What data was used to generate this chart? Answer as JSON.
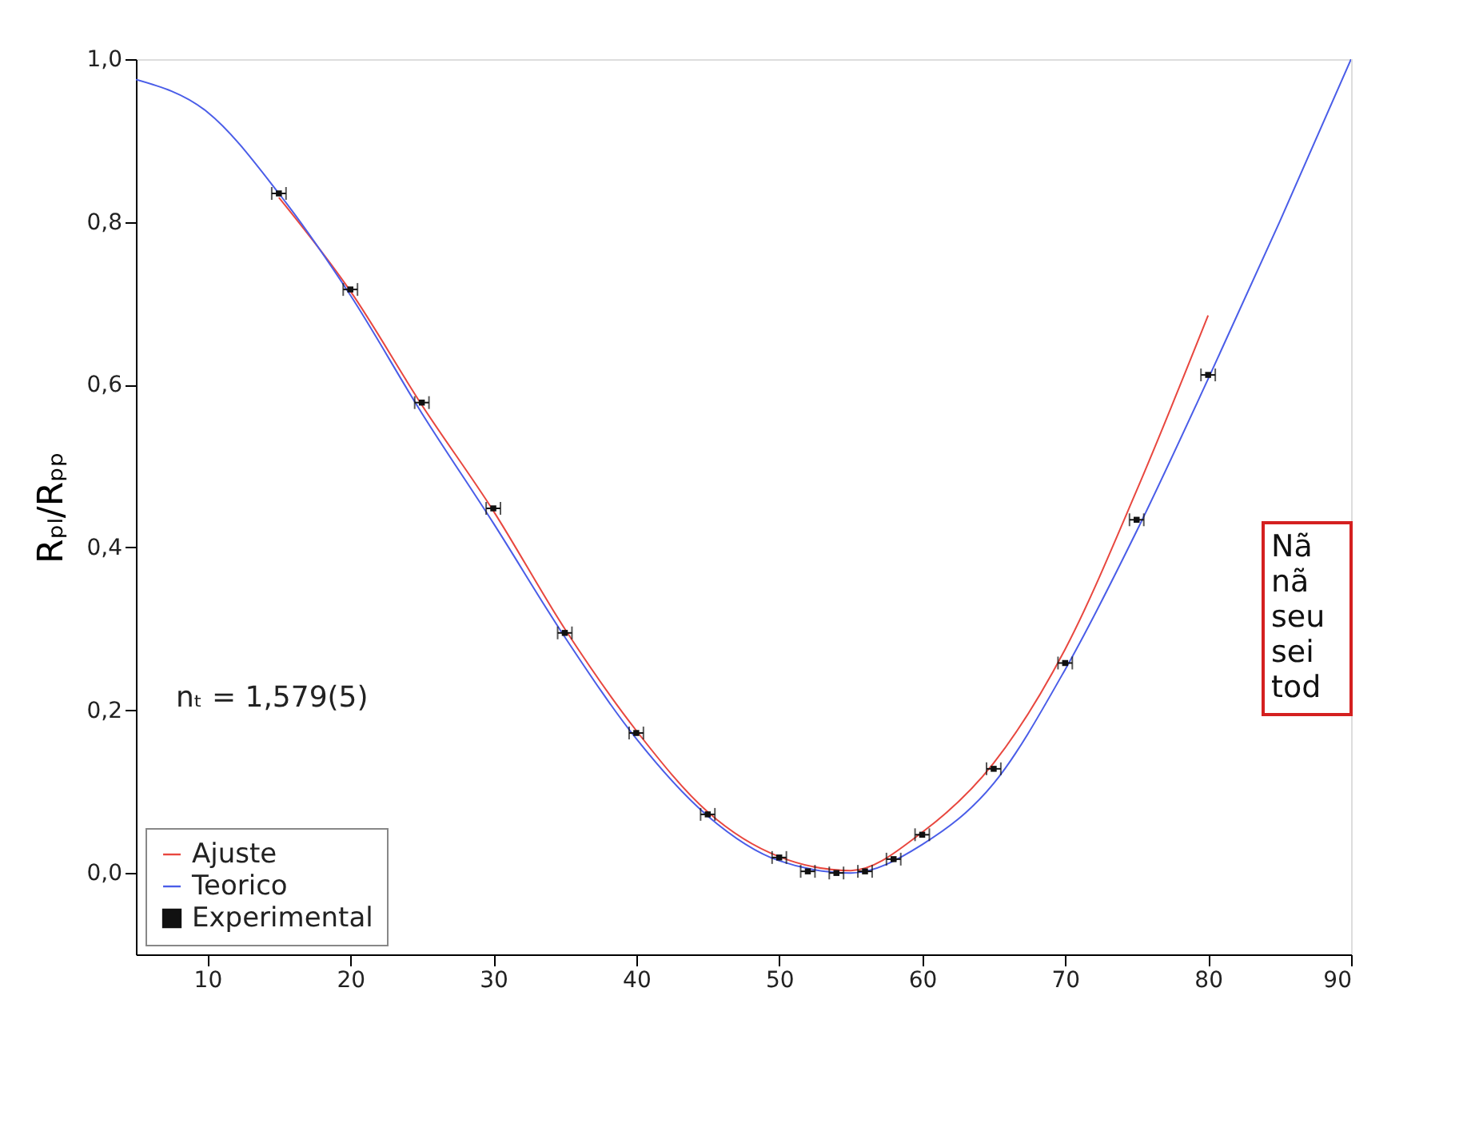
{
  "chart_data": {
    "type": "line",
    "ylabel": "Rₚₗ/Rₚₚ",
    "annotations": [
      "nₜ = 1,579(5)",
      "Nã\nnã\nseu\nsei\ntod"
    ],
    "xlim": [
      5,
      90
    ],
    "xticks": [
      10,
      20,
      30,
      40,
      50,
      60,
      70,
      80,
      90
    ],
    "ylim": [
      -0.1,
      1.0
    ],
    "yticks": [
      {
        "value": 0.0,
        "label": "0,0"
      },
      {
        "value": 0.2,
        "label": "0,2"
      },
      {
        "value": 0.4,
        "label": "0,4"
      },
      {
        "value": 0.6,
        "label": "0,6"
      },
      {
        "value": 0.8,
        "label": "0,8"
      },
      {
        "value": 1.0,
        "label": "1,0"
      }
    ],
    "grid": false,
    "legend": "bottom left",
    "series": [
      {
        "name": "Ajuste",
        "color": "#e8473f",
        "x": [
          15,
          20,
          25,
          30,
          35,
          40,
          45,
          50,
          55,
          60,
          65,
          70,
          75,
          80
        ],
        "values": [
          0.83,
          0.715,
          0.575,
          0.445,
          0.3,
          0.175,
          0.075,
          0.02,
          0.003,
          0.05,
          0.135,
          0.275,
          0.47,
          0.685
        ]
      },
      {
        "name": "Teorico",
        "color": "#4a5de8",
        "x": [
          5,
          10,
          15,
          20,
          25,
          30,
          35,
          40,
          45,
          50,
          55,
          60,
          65,
          70,
          75,
          80,
          85,
          90
        ],
        "values": [
          0.975,
          0.935,
          0.835,
          0.71,
          0.565,
          0.43,
          0.29,
          0.165,
          0.07,
          0.015,
          0.0,
          0.035,
          0.11,
          0.25,
          0.42,
          0.607,
          0.8,
          1.0
        ]
      },
      {
        "name": "Experimental",
        "type": "scatter",
        "marker": "square",
        "color": "#111111",
        "x": [
          15,
          20,
          25,
          30,
          35,
          40,
          45,
          50,
          52,
          54,
          56,
          58,
          60,
          65,
          70,
          75,
          80
        ],
        "values": [
          0.835,
          0.717,
          0.578,
          0.448,
          0.295,
          0.172,
          0.072,
          0.019,
          0.002,
          0.0,
          0.002,
          0.017,
          0.047,
          0.128,
          0.258,
          0.434,
          0.612
        ],
        "xerrors": [
          0.5,
          0.5,
          0.5,
          0.5,
          0.5,
          0.5,
          0.5,
          0.5,
          0.5,
          0.5,
          0.5,
          0.5,
          0.5,
          0.5,
          0.5,
          0.5,
          0.5
        ]
      }
    ]
  }
}
